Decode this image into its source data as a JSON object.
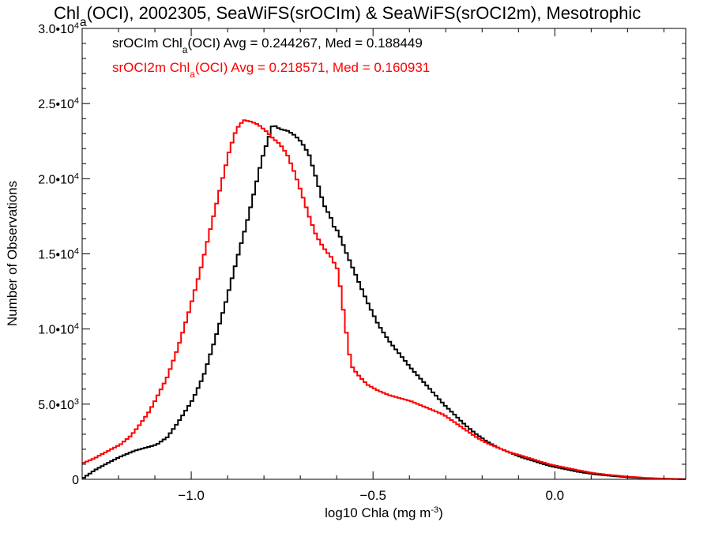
{
  "chart_data": {
    "type": "line",
    "title_parts": [
      {
        "text": "Chl"
      },
      {
        "text": "a",
        "sub": true
      },
      {
        "text": "(OCI), 2002305, SeaWiFS(srOCIm) & SeaWiFS(srOCI2m), Mesotrophic"
      }
    ],
    "xlabel_parts": [
      {
        "text": "log10 Chla (mg m"
      },
      {
        "text": "-3",
        "sup": true
      },
      {
        "text": ")"
      }
    ],
    "ylabel": "Number of Observations",
    "xlim": [
      -1.3,
      0.36
    ],
    "ylim": [
      0,
      30000
    ],
    "xticks": [
      {
        "value": -1.0,
        "label": "−1.0"
      },
      {
        "value": -0.5,
        "label": "−0.5"
      },
      {
        "value": 0.0,
        "label": "0.0"
      }
    ],
    "yticks": [
      {
        "value": 0,
        "base": "0",
        "exp": ""
      },
      {
        "value": 5000,
        "base": "5.0•10",
        "exp": "3"
      },
      {
        "value": 10000,
        "base": "1.0•10",
        "exp": "4"
      },
      {
        "value": 15000,
        "base": "1.5•10",
        "exp": "4"
      },
      {
        "value": 20000,
        "base": "2.0•10",
        "exp": "4"
      },
      {
        "value": 25000,
        "base": "2.5•10",
        "exp": "4"
      },
      {
        "value": 30000,
        "base": "3.0•10",
        "exp": "4"
      }
    ],
    "series": [
      {
        "name": "srOCIm",
        "color": "#000000",
        "legend_parts": [
          {
            "text": "srOCIm Chl"
          },
          {
            "text": "a",
            "sub": true
          },
          {
            "text": "(OCI) Avg = 0.244267, Med = 0.188449"
          }
        ],
        "points": [
          [
            -1.3,
            100
          ],
          [
            -1.27,
            600
          ],
          [
            -1.24,
            1000
          ],
          [
            -1.2,
            1500
          ],
          [
            -1.16,
            1900
          ],
          [
            -1.13,
            2100
          ],
          [
            -1.1,
            2300
          ],
          [
            -1.07,
            2800
          ],
          [
            -1.04,
            3800
          ],
          [
            -1.0,
            5300
          ],
          [
            -0.97,
            6900
          ],
          [
            -0.94,
            9200
          ],
          [
            -0.91,
            11700
          ],
          [
            -0.88,
            14500
          ],
          [
            -0.85,
            17200
          ],
          [
            -0.83,
            19200
          ],
          [
            -0.81,
            21300
          ],
          [
            -0.79,
            22800
          ],
          [
            -0.78,
            23600
          ],
          [
            -0.76,
            23300
          ],
          [
            -0.74,
            23200
          ],
          [
            -0.72,
            22900
          ],
          [
            -0.7,
            22400
          ],
          [
            -0.68,
            21600
          ],
          [
            -0.66,
            20000
          ],
          [
            -0.64,
            18300
          ],
          [
            -0.62,
            17400
          ],
          [
            -0.61,
            16700
          ],
          [
            -0.6,
            16500
          ],
          [
            -0.58,
            15200
          ],
          [
            -0.55,
            13500
          ],
          [
            -0.52,
            11800
          ],
          [
            -0.49,
            10300
          ],
          [
            -0.46,
            9200
          ],
          [
            -0.43,
            8300
          ],
          [
            -0.4,
            7400
          ],
          [
            -0.37,
            6600
          ],
          [
            -0.34,
            5800
          ],
          [
            -0.31,
            5000
          ],
          [
            -0.28,
            4300
          ],
          [
            -0.25,
            3600
          ],
          [
            -0.22,
            3000
          ],
          [
            -0.19,
            2500
          ],
          [
            -0.16,
            2100
          ],
          [
            -0.13,
            1800
          ],
          [
            -0.1,
            1500
          ],
          [
            -0.06,
            1200
          ],
          [
            -0.02,
            900
          ],
          [
            0.02,
            700
          ],
          [
            0.06,
            500
          ],
          [
            0.1,
            350
          ],
          [
            0.15,
            230
          ],
          [
            0.2,
            130
          ],
          [
            0.25,
            70
          ],
          [
            0.3,
            30
          ],
          [
            0.36,
            10
          ]
        ]
      },
      {
        "name": "srOCI2m",
        "color": "#ff0000",
        "legend_parts": [
          {
            "text": "srOCI2m Chl"
          },
          {
            "text": "a",
            "sub": true
          },
          {
            "text": "(OCI) Avg = 0.218571, Med = 0.160931"
          }
        ],
        "points": [
          [
            -1.3,
            1100
          ],
          [
            -1.27,
            1400
          ],
          [
            -1.24,
            1800
          ],
          [
            -1.2,
            2300
          ],
          [
            -1.17,
            2900
          ],
          [
            -1.15,
            3500
          ],
          [
            -1.12,
            4500
          ],
          [
            -1.1,
            5400
          ],
          [
            -1.07,
            6800
          ],
          [
            -1.04,
            8800
          ],
          [
            -1.01,
            11200
          ],
          [
            -0.98,
            13800
          ],
          [
            -0.95,
            16800
          ],
          [
            -0.92,
            19800
          ],
          [
            -0.9,
            21800
          ],
          [
            -0.88,
            23300
          ],
          [
            -0.86,
            23900
          ],
          [
            -0.84,
            23800
          ],
          [
            -0.82,
            23600
          ],
          [
            -0.8,
            23200
          ],
          [
            -0.78,
            22700
          ],
          [
            -0.76,
            22300
          ],
          [
            -0.74,
            21600
          ],
          [
            -0.72,
            20400
          ],
          [
            -0.7,
            19000
          ],
          [
            -0.68,
            17500
          ],
          [
            -0.66,
            16200
          ],
          [
            -0.64,
            15400
          ],
          [
            -0.62,
            14800
          ],
          [
            -0.6,
            13900
          ],
          [
            -0.59,
            12000
          ],
          [
            -0.58,
            10200
          ],
          [
            -0.57,
            8400
          ],
          [
            -0.56,
            7400
          ],
          [
            -0.54,
            6800
          ],
          [
            -0.52,
            6300
          ],
          [
            -0.49,
            5900
          ],
          [
            -0.46,
            5600
          ],
          [
            -0.43,
            5400
          ],
          [
            -0.4,
            5200
          ],
          [
            -0.37,
            4900
          ],
          [
            -0.34,
            4600
          ],
          [
            -0.31,
            4300
          ],
          [
            -0.28,
            3800
          ],
          [
            -0.25,
            3300
          ],
          [
            -0.22,
            2800
          ],
          [
            -0.19,
            2400
          ],
          [
            -0.16,
            2100
          ],
          [
            -0.13,
            1800
          ],
          [
            -0.1,
            1600
          ],
          [
            -0.06,
            1300
          ],
          [
            -0.02,
            1000
          ],
          [
            0.02,
            800
          ],
          [
            0.06,
            600
          ],
          [
            0.1,
            420
          ],
          [
            0.15,
            280
          ],
          [
            0.2,
            170
          ],
          [
            0.25,
            90
          ],
          [
            0.3,
            40
          ],
          [
            0.36,
            10
          ]
        ]
      }
    ]
  }
}
